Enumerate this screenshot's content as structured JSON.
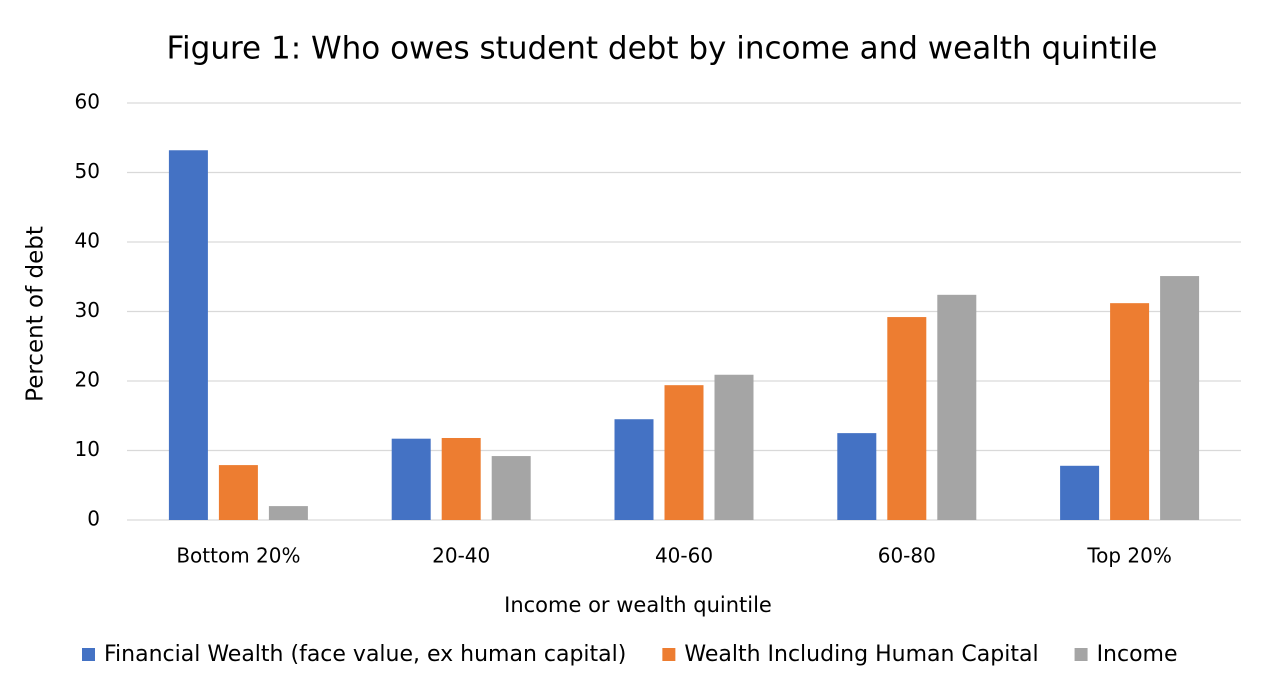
{
  "chart_data": {
    "type": "bar",
    "title": "Figure 1: Who owes student debt by income and wealth quintile",
    "x_label": "Income or wealth quintile",
    "y_label": "Percent of debt",
    "categories": [
      "Bottom 20%",
      "20-40",
      "40-60",
      "60-80",
      "Top 20%"
    ],
    "series": [
      {
        "name": "Financial Wealth (face value, ex human capital)",
        "color": "#4472c4",
        "values": [
          53.2,
          11.7,
          14.5,
          12.5,
          7.8
        ]
      },
      {
        "name": "Wealth Including Human Capital",
        "color": "#ed7d31",
        "values": [
          7.9,
          11.8,
          19.4,
          29.2,
          31.2
        ]
      },
      {
        "name": "Income",
        "color": "#a5a5a5",
        "values": [
          2.0,
          9.2,
          20.9,
          32.4,
          35.1
        ]
      }
    ],
    "ylim": [
      0,
      60
    ],
    "yticks": [
      0,
      10,
      20,
      30,
      40,
      50,
      60
    ],
    "grid": true,
    "legend": "bottom"
  }
}
